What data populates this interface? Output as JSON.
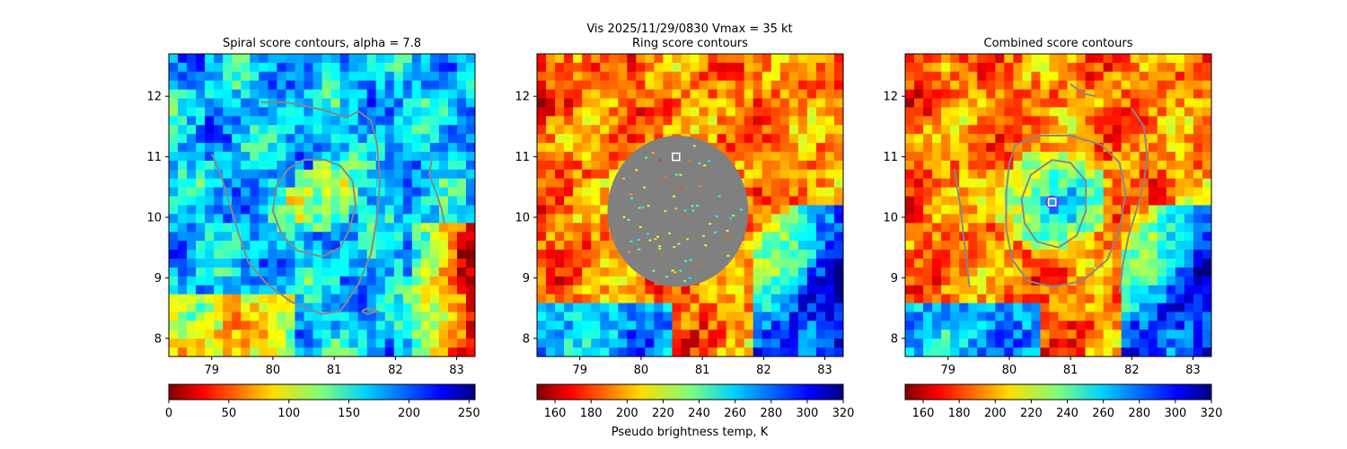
{
  "suptitle_line1": "Vis  2025/11/29/0830    Vmax = 35 kt",
  "colorbar_label": "Pseudo brightness temp, K",
  "chart_data": [
    {
      "type": "heatmap",
      "title": "Spiral score contours, alpha =  7.8",
      "x_ticks": [
        79,
        80,
        81,
        82,
        83
      ],
      "y_ticks": [
        8,
        9,
        10,
        11,
        12
      ],
      "xlim": [
        78.3,
        83.3
      ],
      "ylim": [
        7.7,
        12.7
      ],
      "colormap": "jet_r",
      "colorbar_ticks": [
        0,
        50,
        100,
        150,
        200,
        250
      ],
      "colorbar_range": [
        0,
        255
      ],
      "marker": null,
      "contours": [
        [
          [
            79.0,
            11.05
          ],
          [
            79.15,
            10.7
          ],
          [
            79.3,
            10.2
          ],
          [
            79.45,
            9.7
          ],
          [
            79.6,
            9.25
          ],
          [
            79.9,
            8.9
          ],
          [
            80.3,
            8.6
          ],
          [
            80.8,
            8.4
          ],
          [
            81.1,
            8.45
          ],
          [
            81.4,
            8.9
          ],
          [
            81.6,
            9.4
          ],
          [
            81.7,
            10.0
          ],
          [
            81.75,
            10.6
          ],
          [
            81.7,
            11.2
          ],
          [
            81.6,
            11.6
          ],
          [
            81.4,
            11.75
          ],
          [
            81.2,
            11.65
          ],
          [
            80.9,
            11.75
          ],
          [
            80.5,
            11.85
          ],
          [
            80.2,
            11.9
          ],
          [
            79.8,
            11.9
          ]
        ],
        [
          [
            80.5,
            10.95
          ],
          [
            80.85,
            10.95
          ],
          [
            81.1,
            10.85
          ],
          [
            81.3,
            10.6
          ],
          [
            81.35,
            10.2
          ],
          [
            81.25,
            9.8
          ],
          [
            81.1,
            9.5
          ],
          [
            80.8,
            9.35
          ],
          [
            80.4,
            9.45
          ],
          [
            80.15,
            9.7
          ],
          [
            80.0,
            10.1
          ],
          [
            80.05,
            10.5
          ],
          [
            80.25,
            10.8
          ],
          [
            80.5,
            10.95
          ]
        ],
        [
          [
            82.6,
            11.0
          ],
          [
            82.55,
            10.7
          ],
          [
            82.65,
            10.45
          ],
          [
            82.75,
            10.15
          ],
          [
            82.8,
            9.9
          ]
        ],
        [
          [
            81.45,
            8.45
          ],
          [
            81.55,
            8.5
          ],
          [
            81.7,
            8.45
          ],
          [
            81.55,
            8.4
          ],
          [
            81.45,
            8.45
          ]
        ]
      ]
    },
    {
      "type": "heatmap",
      "title": "Ring score contours",
      "x_ticks": [
        79,
        80,
        81,
        82,
        83
      ],
      "y_ticks": [
        8,
        9,
        10,
        11,
        12
      ],
      "xlim": [
        78.3,
        83.3
      ],
      "ylim": [
        7.7,
        12.7
      ],
      "colormap": "jet_r",
      "colorbar_ticks": [
        160,
        180,
        200,
        220,
        240,
        260,
        280,
        300,
        320
      ],
      "colorbar_range": [
        150,
        320
      ],
      "masked_region": {
        "center": [
          80.6,
          10.1
        ],
        "radius_x": 1.15,
        "radius_y": 1.25
      },
      "marker": {
        "x": 80.57,
        "y": 11.0,
        "style": "white-square"
      },
      "contours": []
    },
    {
      "type": "heatmap",
      "title": "Combined score contours",
      "x_ticks": [
        79,
        80,
        81,
        82,
        83
      ],
      "y_ticks": [
        8,
        9,
        10,
        11,
        12
      ],
      "xlim": [
        78.3,
        83.3
      ],
      "ylim": [
        7.7,
        12.7
      ],
      "colormap": "jet_r",
      "colorbar_ticks": [
        160,
        180,
        200,
        220,
        240,
        260,
        280,
        300,
        320
      ],
      "colorbar_range": [
        150,
        320
      ],
      "marker": {
        "x": 80.7,
        "y": 10.25,
        "style": "white-square-purple-ring"
      },
      "contours": [
        [
          [
            79.1,
            10.8
          ],
          [
            79.2,
            10.2
          ],
          [
            79.25,
            9.7
          ],
          [
            79.3,
            9.3
          ],
          [
            79.35,
            8.85
          ]
        ],
        [
          [
            80.1,
            11.2
          ],
          [
            80.5,
            11.35
          ],
          [
            81.0,
            11.35
          ],
          [
            81.5,
            11.2
          ],
          [
            81.8,
            10.9
          ],
          [
            81.9,
            10.4
          ],
          [
            81.8,
            9.8
          ],
          [
            81.6,
            9.3
          ],
          [
            81.2,
            8.95
          ],
          [
            80.7,
            8.85
          ],
          [
            80.3,
            8.95
          ],
          [
            80.05,
            9.3
          ],
          [
            79.95,
            9.8
          ],
          [
            79.95,
            10.4
          ],
          [
            80.0,
            10.9
          ],
          [
            80.1,
            11.2
          ]
        ],
        [
          [
            80.7,
            10.95
          ],
          [
            81.0,
            10.9
          ],
          [
            81.25,
            10.6
          ],
          [
            81.25,
            10.1
          ],
          [
            81.1,
            9.7
          ],
          [
            80.8,
            9.5
          ],
          [
            80.45,
            9.6
          ],
          [
            80.25,
            9.9
          ],
          [
            80.2,
            10.3
          ],
          [
            80.35,
            10.7
          ],
          [
            80.7,
            10.95
          ]
        ],
        [
          [
            82.0,
            11.8
          ],
          [
            82.2,
            11.5
          ],
          [
            82.25,
            11.0
          ],
          [
            82.2,
            10.6
          ],
          [
            82.1,
            10.2
          ],
          [
            81.95,
            9.7
          ],
          [
            81.85,
            9.2
          ],
          [
            81.8,
            8.75
          ]
        ],
        [
          [
            81.0,
            12.2
          ],
          [
            81.2,
            12.05
          ],
          [
            81.4,
            12.0
          ]
        ]
      ]
    }
  ]
}
